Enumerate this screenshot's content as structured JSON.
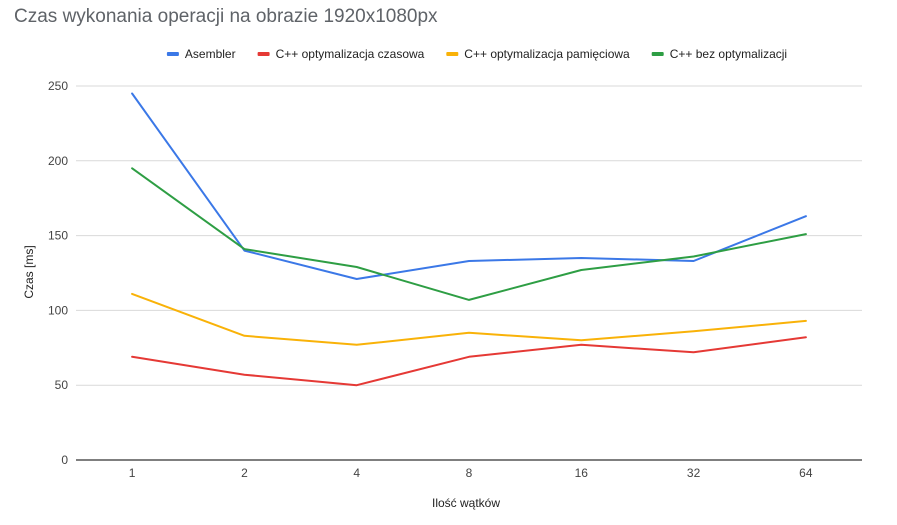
{
  "chart_data": {
    "type": "line",
    "title": "Czas wykonania operacji na obrazie 1920x1080px",
    "xlabel": "Ilość wątków",
    "ylabel": "Czas [ms]",
    "categories": [
      "1",
      "2",
      "4",
      "8",
      "16",
      "32",
      "64"
    ],
    "ylim": [
      0,
      250
    ],
    "yticks": [
      0,
      50,
      100,
      150,
      200,
      250
    ],
    "grid": true,
    "legend_position": "top",
    "series": [
      {
        "name": "Asembler",
        "color": "#3b78e7",
        "values": [
          245,
          140,
          121,
          133,
          135,
          133,
          163
        ]
      },
      {
        "name": "C++ optymalizacja czasowa",
        "color": "#e53935",
        "values": [
          69,
          57,
          50,
          69,
          77,
          72,
          82
        ]
      },
      {
        "name": "C++ optymalizacja pamięciowa",
        "color": "#f9b208",
        "values": [
          111,
          83,
          77,
          85,
          80,
          86,
          93
        ]
      },
      {
        "name": "C++ bez optymalizacji",
        "color": "#2e9e44",
        "values": [
          195,
          141,
          129,
          107,
          127,
          136,
          151
        ]
      }
    ]
  }
}
